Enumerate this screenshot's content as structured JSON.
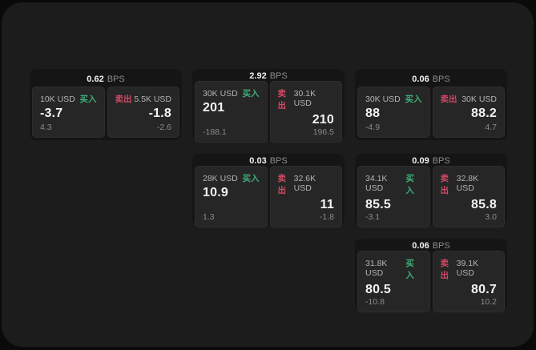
{
  "colors": {
    "buy_green": "#3fae77",
    "sell_red": "#cf4a63",
    "price_white": "#f2f2f2"
  },
  "labels": {
    "bps_unit": "BPS",
    "buy": "买入",
    "sell": "卖出"
  },
  "cards": [
    {
      "bps": "0.62",
      "buy": {
        "size": "10K USD",
        "price": "-3.7",
        "delta": "4.3"
      },
      "sell": {
        "size": "5.5K USD",
        "price": "-1.8",
        "delta": "-2.6"
      }
    },
    {
      "bps": "2.92",
      "buy": {
        "size": "30K USD",
        "price": "201",
        "delta": "-188.1"
      },
      "sell": {
        "size": "30.1K USD",
        "price": "210",
        "delta": "196.5"
      }
    },
    {
      "bps": "0.06",
      "buy": {
        "size": "30K USD",
        "price": "88",
        "delta": "-4.9"
      },
      "sell": {
        "size": "30K USD",
        "price": "88.2",
        "delta": "4.7"
      }
    },
    {
      "bps": "0.03",
      "buy": {
        "size": "28K USD",
        "price": "10.9",
        "delta": "1.3"
      },
      "sell": {
        "size": "32.6K USD",
        "price": "11",
        "delta": "-1.8"
      }
    },
    {
      "bps": "0.09",
      "buy": {
        "size": "34.1K USD",
        "price": "85.5",
        "delta": "-3.1"
      },
      "sell": {
        "size": "32.8K USD",
        "price": "85.8",
        "delta": "3.0"
      }
    },
    {
      "bps": "0.06",
      "buy": {
        "size": "31.8K USD",
        "price": "80.5",
        "delta": "-10.8"
      },
      "sell": {
        "size": "39.1K USD",
        "price": "80.7",
        "delta": "10.2"
      }
    }
  ]
}
